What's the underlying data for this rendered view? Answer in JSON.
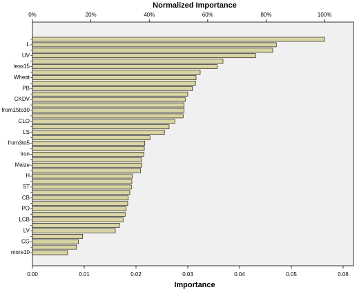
{
  "chart_data": {
    "type": "hbar",
    "xlabel": "Importance",
    "x2label": "Normalized Importance",
    "categories": [
      null,
      "L",
      null,
      "UV",
      null,
      "less15",
      null,
      "Wheat",
      null,
      "PB",
      null,
      "CKDV",
      null,
      "from15to30",
      null,
      "CLO",
      null,
      "LS",
      null,
      "from3to5",
      null,
      "Iron",
      null,
      "Maize",
      null,
      "H",
      null,
      "ST",
      null,
      "CB",
      null,
      "PO",
      null,
      "LCB",
      null,
      "LV",
      null,
      "CG",
      null,
      "more10"
    ],
    "values": [
      0.0564,
      0.0471,
      0.0464,
      0.0431,
      0.0368,
      0.0357,
      0.0324,
      0.0316,
      0.0315,
      0.0309,
      0.03,
      0.0295,
      0.0293,
      0.0293,
      0.0291,
      0.0275,
      0.0264,
      0.0255,
      0.0227,
      0.0217,
      0.0216,
      0.0215,
      0.0211,
      0.0211,
      0.0209,
      0.0193,
      0.0192,
      0.0191,
      0.0188,
      0.0185,
      0.0184,
      0.0181,
      0.0179,
      0.0175,
      0.0168,
      0.016,
      0.0097,
      0.0089,
      0.0085,
      0.0068
    ],
    "color": "#d9d4a3",
    "xlim": [
      0,
      0.062
    ],
    "xticks": [
      {
        "value": 0,
        "label": "0.00"
      },
      {
        "value": 0.01,
        "label": "0.01"
      },
      {
        "value": 0.02,
        "label": "0.02"
      },
      {
        "value": 0.03,
        "label": "0.03"
      },
      {
        "value": 0.04,
        "label": "0.04"
      },
      {
        "value": 0.05,
        "label": "0.05"
      },
      {
        "value": 0.06,
        "label": "0.06"
      }
    ],
    "x2lim": [
      0,
      109.9
    ],
    "x2ticks": [
      {
        "value": 0,
        "label": "0%"
      },
      {
        "value": 20,
        "label": "20%"
      },
      {
        "value": 40,
        "label": "40%"
      },
      {
        "value": 60,
        "label": "60%"
      },
      {
        "value": 80,
        "label": "80%"
      },
      {
        "value": 100,
        "label": "100%"
      }
    ]
  }
}
